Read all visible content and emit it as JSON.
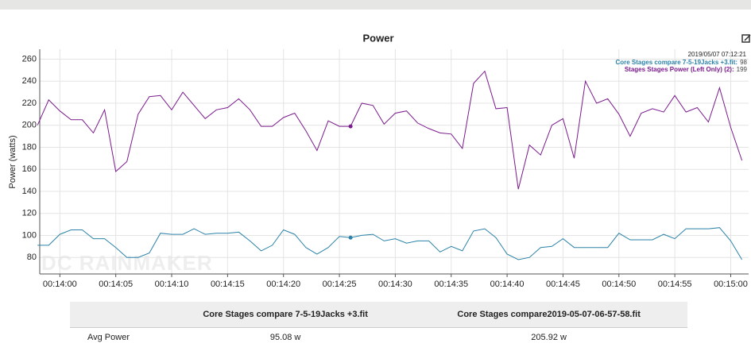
{
  "chart_data": {
    "type": "line",
    "title": "Power",
    "y_label": "Power (watts)",
    "watermark": "DC RAINMAKER",
    "x": [
      838,
      839,
      840,
      841,
      842,
      843,
      844,
      845,
      846,
      847,
      848,
      849,
      850,
      851,
      852,
      853,
      854,
      855,
      856,
      857,
      858,
      859,
      860,
      861,
      862,
      863,
      864,
      865,
      866,
      867,
      868,
      869,
      870,
      871,
      872,
      873,
      874,
      875,
      876,
      877,
      878,
      879,
      880,
      881,
      882,
      883,
      884,
      885,
      886,
      887,
      888,
      889,
      890,
      891,
      892,
      893,
      894,
      895,
      896,
      897,
      898,
      899,
      900,
      901
    ],
    "series": [
      {
        "name": "Core Stages compare 7-5-19Jacks +3.fit",
        "color": "#2b82a8",
        "values": [
          91,
          91,
          101,
          105,
          105,
          97,
          97,
          89,
          80,
          80,
          84,
          102,
          101,
          101,
          106,
          101,
          102,
          102,
          103,
          95,
          86,
          91,
          105,
          101,
          89,
          83,
          89,
          99,
          98,
          100,
          101,
          95,
          97,
          93,
          95,
          95,
          85,
          90,
          86,
          104,
          106,
          98,
          83,
          78,
          80,
          89,
          90,
          97,
          89,
          89,
          89,
          89,
          102,
          96,
          96,
          96,
          101,
          97,
          106,
          106,
          106,
          107,
          95,
          78
        ]
      },
      {
        "name": "Stages Stages Power (Left Only) (2)",
        "color": "#7a1a8c",
        "values": [
          200,
          223,
          213,
          205,
          205,
          193,
          214,
          158,
          167,
          210,
          226,
          227,
          214,
          230,
          218,
          206,
          214,
          216,
          224,
          214,
          199,
          199,
          207,
          211,
          195,
          177,
          204,
          199,
          199,
          220,
          218,
          201,
          211,
          213,
          202,
          197,
          193,
          192,
          179,
          238,
          249,
          215,
          216,
          142,
          182,
          173,
          200,
          206,
          170,
          240,
          220,
          224,
          210,
          190,
          211,
          215,
          212,
          227,
          212,
          216,
          203,
          234,
          198,
          168
        ]
      }
    ],
    "hover": {
      "time": "2019/05/07 07:12:21",
      "index": 28,
      "separator": ":"
    },
    "xlim": [
      838.2,
      901.6
    ],
    "xticks": [
      {
        "value": 840,
        "label": "00:14:00"
      },
      {
        "value": 845,
        "label": "00:14:05"
      },
      {
        "value": 850,
        "label": "00:14:10"
      },
      {
        "value": 855,
        "label": "00:14:15"
      },
      {
        "value": 860,
        "label": "00:14:20"
      },
      {
        "value": 865,
        "label": "00:14:25"
      },
      {
        "value": 870,
        "label": "00:14:30"
      },
      {
        "value": 875,
        "label": "00:14:35"
      },
      {
        "value": 880,
        "label": "00:14:40"
      },
      {
        "value": 885,
        "label": "00:14:45"
      },
      {
        "value": 890,
        "label": "00:14:50"
      },
      {
        "value": 895,
        "label": "00:14:55"
      },
      {
        "value": 900,
        "label": "00:15:00"
      }
    ],
    "ylim": [
      65,
      269
    ],
    "yticks": [
      80,
      100,
      120,
      140,
      160,
      180,
      200,
      220,
      240,
      260
    ],
    "grid": true
  },
  "table": {
    "header": [
      "",
      "Core Stages compare 7-5-19Jacks +3.fit",
      "Core Stages compare2019-05-07-06-57-58.fit"
    ],
    "rows": [
      [
        "Avg Power",
        "95.08 w",
        "205.92 w"
      ]
    ]
  }
}
